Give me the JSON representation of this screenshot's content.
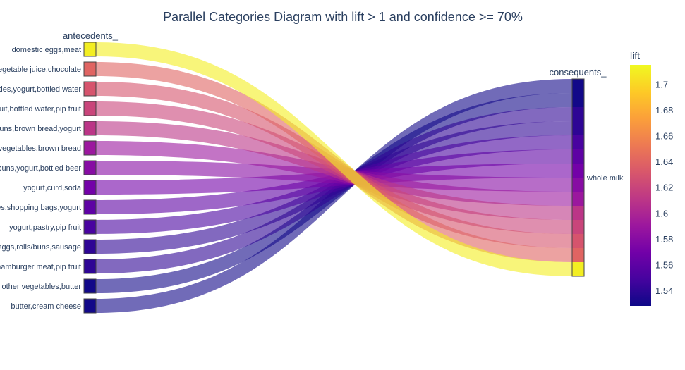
{
  "chart_data": {
    "type": "parallel_categories",
    "title": "Parallel Categories Diagram with lift > 1 and confidence >= 70%",
    "dimensions": [
      {
        "label": "antecedents_",
        "categories": [
          "domestic eggs,meat",
          "vegetable juice,chocolate",
          "bottles,yogurt,bottled water",
          "fruit,bottled water,pip fruit",
          "rolls/buns,brown bread,yogurt",
          "other vegetables,brown bread",
          "rolls/buns,yogurt,bottled beer",
          "yogurt,curd,soda",
          "ables,shopping bags,yogurt",
          "yogurt,pastry,pip fruit",
          "eggs,rolls/buns,sausage",
          "hamburger meat,pip fruit",
          "other vegetables,butter",
          "butter,cream cheese"
        ]
      },
      {
        "label": "consequents_",
        "categories": [
          "whole milk"
        ]
      }
    ],
    "lift": [
      1.71,
      1.64,
      1.63,
      1.62,
      1.61,
      1.59,
      1.58,
      1.57,
      1.56,
      1.55,
      1.54,
      1.54,
      1.53,
      1.53
    ],
    "colorbar": {
      "title": "lift",
      "range": [
        1.528,
        1.715
      ],
      "ticks": [
        1.54,
        1.56,
        1.58,
        1.6,
        1.62,
        1.64,
        1.66,
        1.68,
        1.7
      ]
    },
    "colorscale": "Plasma"
  }
}
